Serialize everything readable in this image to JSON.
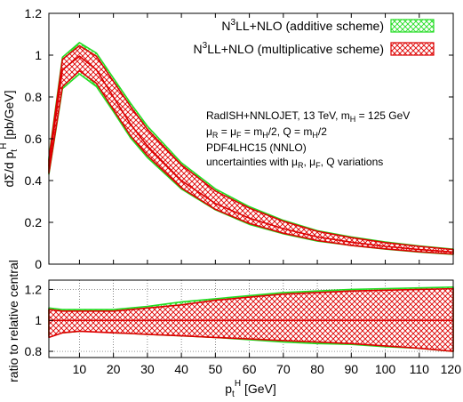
{
  "chart_data": [
    {
      "type": "area",
      "panel": "main",
      "ylabel": "dΣ/d p_t^H [pb/GeV]",
      "xlim": [
        1,
        120
      ],
      "ylim": [
        0,
        1.2
      ],
      "yticks": [
        "0",
        "0.2",
        "0.4",
        "0.6",
        "0.8",
        "1",
        "1.2"
      ],
      "grid": false,
      "legend": {
        "placement": "top-right",
        "entries": [
          "N³LL+NLO (additive scheme)",
          "N³LL+NLO (multiplicative scheme)"
        ]
      },
      "annotations": [
        "RadISH+NNLOJET, 13 TeV, m_H = 125 GeV",
        "μ_R = μ_F = m_H/2, Q = m_H/2",
        "PDF4LHC15 (NNLO)",
        "uncertainties with μ_R, μ_F, Q variations"
      ],
      "x": [
        1,
        5,
        10,
        15,
        20,
        25,
        30,
        40,
        50,
        60,
        70,
        80,
        90,
        100,
        110,
        120
      ],
      "series": [
        {
          "name": "N³LL+NLO (additive scheme)",
          "color": "#22dd22",
          "central": [
            0.47,
            0.93,
            0.995,
            0.93,
            0.8,
            0.67,
            0.565,
            0.4,
            0.29,
            0.22,
            0.17,
            0.13,
            0.105,
            0.085,
            0.07,
            0.058
          ],
          "lower": [
            0.43,
            0.84,
            0.91,
            0.85,
            0.73,
            0.605,
            0.51,
            0.36,
            0.26,
            0.19,
            0.145,
            0.11,
            0.09,
            0.072,
            0.058,
            0.047
          ],
          "upper": [
            0.51,
            0.99,
            1.06,
            1.01,
            0.89,
            0.77,
            0.66,
            0.485,
            0.36,
            0.275,
            0.21,
            0.16,
            0.13,
            0.106,
            0.087,
            0.072
          ]
        },
        {
          "name": "N³LL+NLO (multiplicative scheme)",
          "color": "#dd0000",
          "central": [
            0.47,
            0.93,
            0.995,
            0.93,
            0.8,
            0.67,
            0.565,
            0.4,
            0.29,
            0.22,
            0.17,
            0.13,
            0.105,
            0.085,
            0.07,
            0.058
          ],
          "lower": [
            0.435,
            0.85,
            0.925,
            0.865,
            0.74,
            0.615,
            0.52,
            0.365,
            0.262,
            0.195,
            0.148,
            0.113,
            0.09,
            0.073,
            0.059,
            0.048
          ],
          "upper": [
            0.5,
            0.98,
            1.045,
            0.995,
            0.875,
            0.755,
            0.645,
            0.475,
            0.35,
            0.268,
            0.205,
            0.157,
            0.127,
            0.103,
            0.085,
            0.07
          ]
        }
      ]
    },
    {
      "type": "area",
      "panel": "ratio",
      "xlabel": "p_t^H [GeV]",
      "ylabel": "ratio to relative central",
      "xlim": [
        1,
        120
      ],
      "ylim": [
        0.76,
        1.26
      ],
      "xticks": [
        "10",
        "20",
        "30",
        "40",
        "50",
        "60",
        "70",
        "80",
        "90",
        "100",
        "110",
        "120"
      ],
      "yticks": [
        "0.8",
        "1",
        "1.2"
      ],
      "grid": true,
      "reference_line": 1,
      "x": [
        1,
        5,
        10,
        15,
        20,
        25,
        30,
        40,
        50,
        60,
        70,
        80,
        90,
        100,
        110,
        120
      ],
      "series": [
        {
          "name": "N³LL+NLO (additive scheme)",
          "color": "#22dd22",
          "lower": [
            0.9,
            0.92,
            0.93,
            0.93,
            0.92,
            0.915,
            0.91,
            0.9,
            0.89,
            0.875,
            0.86,
            0.85,
            0.845,
            0.83,
            0.82,
            0.8
          ],
          "upper": [
            1.08,
            1.07,
            1.07,
            1.07,
            1.07,
            1.08,
            1.09,
            1.12,
            1.14,
            1.16,
            1.18,
            1.19,
            1.2,
            1.205,
            1.21,
            1.215
          ]
        },
        {
          "name": "N³LL+NLO (multiplicative scheme)",
          "color": "#dd0000",
          "lower": [
            0.89,
            0.92,
            0.93,
            0.925,
            0.92,
            0.915,
            0.91,
            0.9,
            0.89,
            0.88,
            0.87,
            0.86,
            0.85,
            0.835,
            0.82,
            0.8
          ],
          "upper": [
            1.07,
            1.06,
            1.06,
            1.06,
            1.06,
            1.07,
            1.08,
            1.1,
            1.13,
            1.15,
            1.17,
            1.18,
            1.19,
            1.195,
            1.2,
            1.205
          ]
        }
      ]
    }
  ]
}
